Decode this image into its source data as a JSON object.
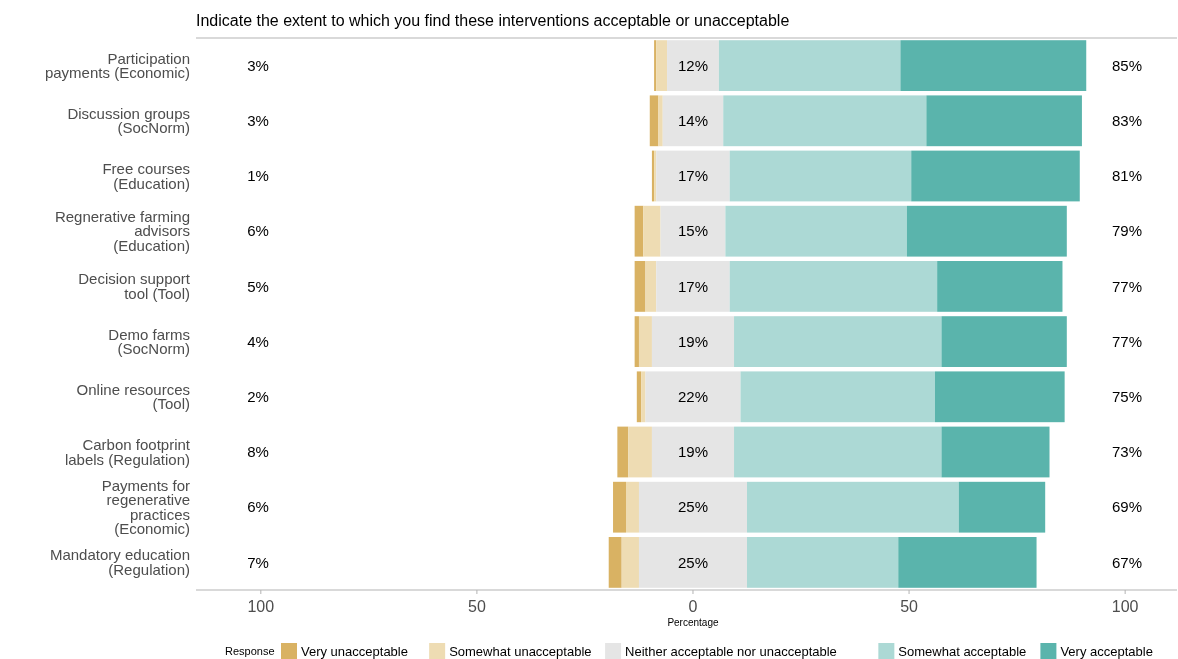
{
  "chart_data": {
    "type": "bar",
    "orientation": "horizontal",
    "title": "Indicate the extent to which you find these interventions acceptable or unacceptable",
    "xlabel": "Percentage",
    "legend_title": "Response",
    "legend": "bottom",
    "grid": false,
    "categories": [
      "Participation payments (Economic)",
      "Discussion groups (SocNorm)",
      "Free courses (Education)",
      "Regnerative farming advisors (Education)",
      "Decision support tool (Tool)",
      "Demo farms (SocNorm)",
      "Online resources (Tool)",
      "Carbon footprint labels (Regulation)",
      "Payments for regenerative practices (Economic)",
      "Mandatory education (Regulation)"
    ],
    "series": [
      {
        "name": "Very unacceptable",
        "color": "#d9b263",
        "values": [
          0.5,
          2,
          0.5,
          2,
          2.5,
          1,
          1,
          2.5,
          3,
          3
        ],
        "base": [
          -9,
          -10,
          -9.5,
          -13.5,
          -13.5,
          -13.5,
          -13,
          -17.5,
          -18.5,
          -19.5
        ]
      },
      {
        "name": "Somewhat unacceptable",
        "color": "#eedcb3",
        "values": [
          2.5,
          1,
          0.5,
          4,
          2.5,
          3,
          1,
          5.5,
          3,
          4
        ],
        "base": [
          -8.5,
          -8,
          -9,
          -11.5,
          -11,
          -12.5,
          -12,
          -15,
          -15.5,
          -16.5
        ]
      },
      {
        "name": "Neither acceptable nor unacceptable",
        "color": "#e5e5e5",
        "values": [
          12,
          14,
          17,
          15,
          17,
          19,
          22,
          19,
          25,
          25
        ],
        "base": [
          -6,
          -7,
          -8.5,
          -7.5,
          -8.5,
          -9.5,
          -11,
          -9.5,
          -12.5,
          -12.5
        ],
        "value_labels": [
          "12%",
          "14%",
          "17%",
          "15%",
          "17%",
          "19%",
          "22%",
          "19%",
          "25%",
          "25%"
        ]
      },
      {
        "name": "Somewhat acceptable",
        "color": "#acd9d5",
        "values": [
          42,
          47,
          42,
          42,
          48,
          48,
          45,
          48,
          49,
          35
        ],
        "base": [
          6,
          7,
          8.5,
          7.5,
          8.5,
          9.5,
          11,
          9.5,
          12.5,
          12.5
        ]
      },
      {
        "name": "Very acceptable",
        "color": "#5ab4ac",
        "values": [
          43,
          36,
          39,
          37,
          29,
          29,
          30,
          25,
          20,
          32
        ],
        "base": [
          48,
          54,
          50.5,
          49.5,
          56.5,
          57.5,
          56,
          57.5,
          61.5,
          47.5
        ]
      }
    ],
    "xlim": [
      -115,
      112
    ],
    "xticks": [
      {
        "value": -100,
        "label": "100"
      },
      {
        "value": -50,
        "label": "50"
      },
      0,
      50,
      100
    ],
    "annotations": [
      "3%",
      "3%",
      "1%",
      "6%",
      "5%",
      "4%",
      "2%",
      "8%",
      "6%",
      "7%",
      "85%",
      "83%",
      "81%",
      "79%",
      "77%",
      "77%",
      "75%",
      "73%",
      "69%",
      "67%"
    ]
  }
}
